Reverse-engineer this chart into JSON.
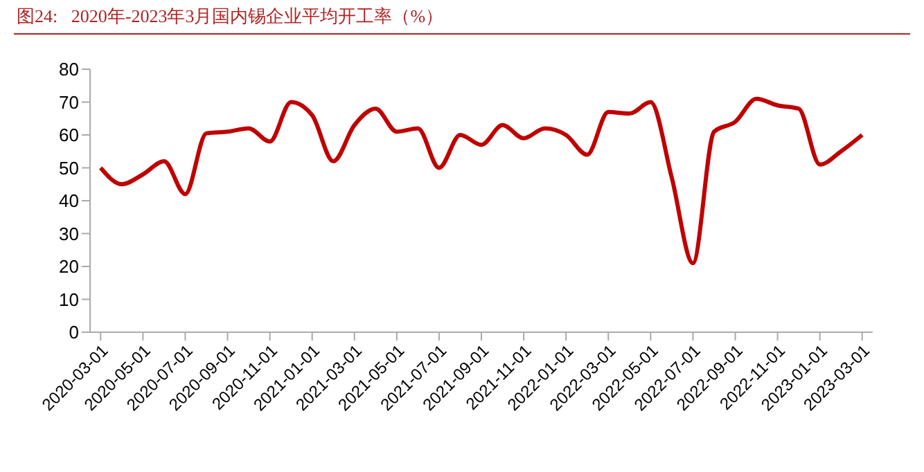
{
  "chart_data": {
    "type": "line",
    "title": "图24:   2020年-2023年3月国内锡企业平均开工率（%）",
    "categories": [
      "2020-03-01",
      null,
      "2020-05-01",
      null,
      "2020-07-01",
      null,
      "2020-09-01",
      null,
      "2020-11-01",
      null,
      "2021-01-01",
      null,
      "2021-03-01",
      null,
      "2021-05-01",
      null,
      "2021-07-01",
      null,
      "2021-09-01",
      null,
      "2021-11-01",
      null,
      "2022-01-01",
      null,
      "2022-03-01",
      null,
      "2022-05-01",
      null,
      "2022-07-01",
      null,
      "2022-09-01",
      null,
      "2022-11-01",
      null,
      "2023-01-01",
      null,
      "2023-03-01"
    ],
    "series": [
      {
        "color": "#c00000",
        "values": [
          50,
          45,
          48,
          52,
          42,
          60.5,
          61,
          62,
          58,
          70,
          66,
          52,
          63,
          68,
          61,
          62,
          50,
          60,
          57,
          63,
          59,
          62,
          60,
          54,
          67,
          66.5,
          70,
          47,
          21,
          61,
          64,
          71,
          69,
          68,
          51,
          55,
          60
        ]
      }
    ],
    "ylim": [
      0,
      80
    ],
    "yticks": [
      0,
      10,
      20,
      30,
      40,
      50,
      60,
      70,
      80
    ],
    "grid": false,
    "marker": "none",
    "line_style": "solid"
  }
}
